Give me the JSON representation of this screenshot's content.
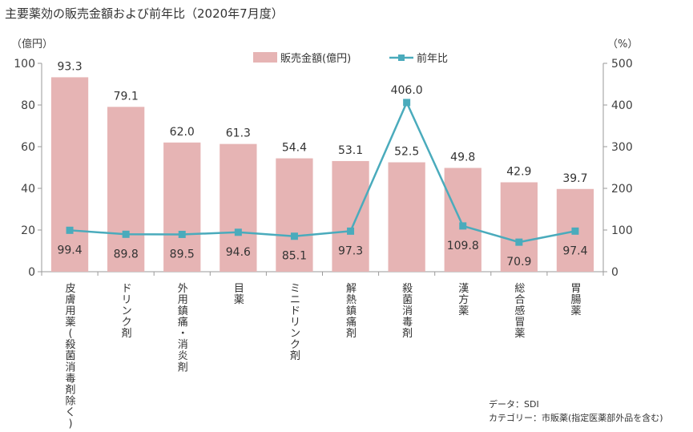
{
  "chart_data": {
    "type": "bar",
    "title": "主要薬効の販売金額および前年比（2020年7月度）",
    "left_axis_unit": "（億円）",
    "right_axis_unit": "（%）",
    "ylim_left": [
      0,
      100
    ],
    "yticks_left": [
      "0",
      "20",
      "40",
      "60",
      "80",
      "100"
    ],
    "ylim_right": [
      0,
      500
    ],
    "yticks_right": [
      "0",
      "100",
      "200",
      "300",
      "400",
      "500"
    ],
    "categories": [
      "皮膚用薬(殺菌消毒剤除く)",
      "ドリンク剤",
      "外用鎮痛・消炎剤",
      "目薬",
      "ミニドリンク剤",
      "解熱鎮痛剤",
      "殺菌消毒剤",
      "漢方薬",
      "総合感冒薬",
      "胃腸薬"
    ],
    "series": [
      {
        "name": "販売金額(億円)",
        "kind": "bar",
        "axis": "left",
        "color": "#e6b4b4",
        "values": [
          93.3,
          79.1,
          62.0,
          61.3,
          54.4,
          53.1,
          52.5,
          49.8,
          42.9,
          39.7
        ],
        "labels": [
          "93.3",
          "79.1",
          "62.0",
          "61.3",
          "54.4",
          "53.1",
          "52.5",
          "49.8",
          "42.9",
          "39.7"
        ]
      },
      {
        "name": "前年比",
        "kind": "line",
        "axis": "right",
        "color": "#4aabbc",
        "values": [
          99.4,
          89.8,
          89.5,
          94.6,
          85.1,
          97.3,
          406.0,
          109.8,
          70.9,
          97.4
        ],
        "labels": [
          "99.4",
          "89.8",
          "89.5",
          "94.6",
          "85.1",
          "97.3",
          "406.0",
          "109.8",
          "70.9",
          "97.4"
        ]
      }
    ],
    "legend_position": "top-center",
    "grid": false,
    "notes": [
      "データ：SDI",
      "カテゴリー：市販薬(指定医薬部外品を含む)"
    ]
  }
}
